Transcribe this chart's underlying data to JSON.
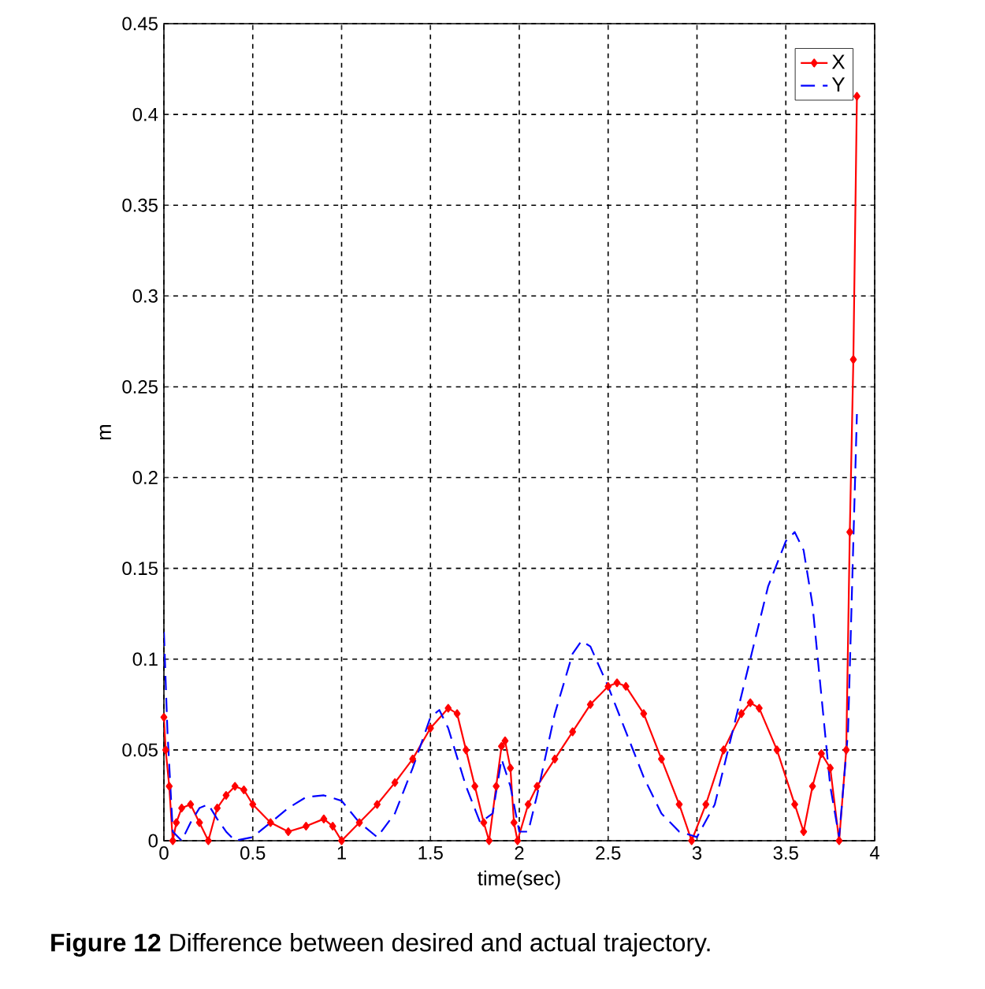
{
  "chart_data": {
    "type": "line",
    "xlabel": "time(sec)",
    "ylabel": "m",
    "annotations": [
      "**Figure 12** Difference between desired and actual trajectory."
    ],
    "xlim": [
      0,
      4
    ],
    "ylim": [
      0,
      0.45
    ],
    "xticks": [
      0,
      0.5,
      1,
      1.5,
      2,
      2.5,
      3,
      3.5,
      4
    ],
    "yticks": [
      0,
      0.05,
      0.1,
      0.15,
      0.2,
      0.25,
      0.3,
      0.35,
      0.4,
      0.45
    ],
    "grid": true,
    "legend": "top right",
    "series": [
      {
        "name": "X",
        "color": "#ff0000",
        "marker": "diamond",
        "line_style": "solid",
        "x": [
          0,
          0.01,
          0.03,
          0.05,
          0.07,
          0.1,
          0.15,
          0.2,
          0.25,
          0.3,
          0.35,
          0.4,
          0.45,
          0.5,
          0.6,
          0.7,
          0.8,
          0.9,
          0.95,
          1.0,
          1.1,
          1.2,
          1.3,
          1.4,
          1.5,
          1.6,
          1.65,
          1.7,
          1.75,
          1.8,
          1.83,
          1.87,
          1.9,
          1.92,
          1.95,
          1.97,
          1.99,
          2.05,
          2.1,
          2.2,
          2.3,
          2.4,
          2.5,
          2.55,
          2.6,
          2.7,
          2.8,
          2.9,
          2.97,
          3.05,
          3.15,
          3.25,
          3.3,
          3.35,
          3.45,
          3.55,
          3.6,
          3.65,
          3.7,
          3.75,
          3.8,
          3.84,
          3.86,
          3.88,
          3.9
        ],
        "values": [
          0.068,
          0.05,
          0.03,
          0.0,
          0.01,
          0.018,
          0.02,
          0.01,
          0.0,
          0.018,
          0.025,
          0.03,
          0.028,
          0.02,
          0.01,
          0.005,
          0.008,
          0.012,
          0.008,
          0.0,
          0.01,
          0.02,
          0.032,
          0.045,
          0.062,
          0.073,
          0.07,
          0.05,
          0.03,
          0.01,
          0.0,
          0.03,
          0.052,
          0.055,
          0.04,
          0.01,
          0.0,
          0.02,
          0.03,
          0.045,
          0.06,
          0.075,
          0.085,
          0.087,
          0.085,
          0.07,
          0.045,
          0.02,
          0.0,
          0.02,
          0.05,
          0.07,
          0.076,
          0.073,
          0.05,
          0.02,
          0.005,
          0.03,
          0.048,
          0.04,
          0.0,
          0.05,
          0.17,
          0.265,
          0.41
        ]
      },
      {
        "name": "Y",
        "color": "#0000ff",
        "marker": "none",
        "line_style": "dashed",
        "x": [
          0,
          0.02,
          0.05,
          0.1,
          0.15,
          0.2,
          0.25,
          0.3,
          0.35,
          0.4,
          0.5,
          0.6,
          0.7,
          0.8,
          0.9,
          1.0,
          1.1,
          1.2,
          1.3,
          1.4,
          1.5,
          1.55,
          1.6,
          1.7,
          1.78,
          1.85,
          1.9,
          1.95,
          2.0,
          2.05,
          2.1,
          2.2,
          2.3,
          2.35,
          2.4,
          2.5,
          2.6,
          2.7,
          2.8,
          2.9,
          3.0,
          3.1,
          3.2,
          3.3,
          3.4,
          3.5,
          3.55,
          3.6,
          3.65,
          3.7,
          3.75,
          3.8,
          3.85,
          3.9
        ],
        "values": [
          0.115,
          0.06,
          0.005,
          0.0,
          0.01,
          0.018,
          0.02,
          0.012,
          0.005,
          0.0,
          0.002,
          0.01,
          0.018,
          0.024,
          0.025,
          0.022,
          0.01,
          0.002,
          0.015,
          0.04,
          0.068,
          0.072,
          0.062,
          0.03,
          0.01,
          0.015,
          0.045,
          0.03,
          0.005,
          0.005,
          0.025,
          0.07,
          0.103,
          0.11,
          0.107,
          0.085,
          0.06,
          0.035,
          0.015,
          0.005,
          0.002,
          0.02,
          0.06,
          0.1,
          0.14,
          0.165,
          0.17,
          0.16,
          0.13,
          0.08,
          0.03,
          0.002,
          0.06,
          0.235
        ]
      }
    ]
  }
}
